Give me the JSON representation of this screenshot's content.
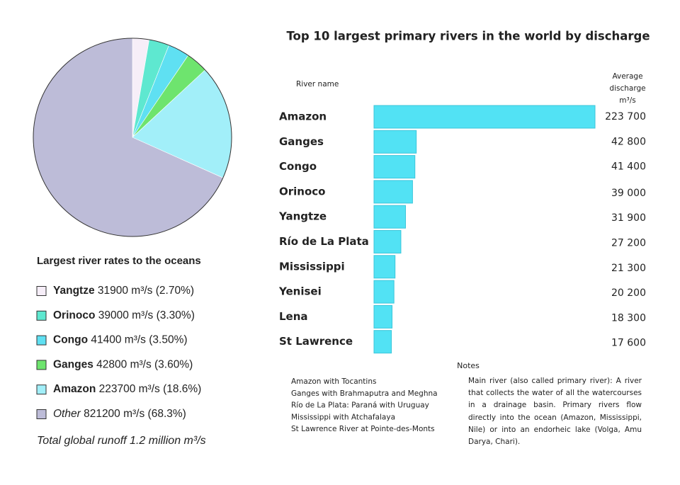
{
  "chart_data": [
    {
      "type": "pie",
      "title": "Largest river rates to the oceans",
      "categories": [
        "Yangtze",
        "Orinoco",
        "Congo",
        "Ganges",
        "Amazon",
        "Other"
      ],
      "values": [
        2.7,
        3.3,
        3.5,
        3.6,
        18.6,
        68.3
      ],
      "value_labels": [
        "31900 m³/s (2.70%)",
        "39000 m³/s (3.30%)",
        "41400 m³/s (3.50%)",
        "42800 m³/s (3.60%)",
        "223700 m³/s (18.6%)",
        "821200 m³/s (68.3%)"
      ],
      "colors": [
        "#f6eef8",
        "#5ee8d0",
        "#5fe0f2",
        "#6ee46e",
        "#a2eff9",
        "#bdbcd8"
      ],
      "note": "Total global runoff 1.2 million m³/s"
    },
    {
      "type": "bar",
      "title": "Top 10 largest primary rivers in the world by discharge",
      "category_header": "River name",
      "value_header": [
        "Average",
        "discharge",
        "m³/s"
      ],
      "categories": [
        "Amazon",
        "Ganges",
        "Congo",
        "Orinoco",
        "Yangtze",
        "Río de La Plata",
        "Mississippi",
        "Yenisei",
        "Lena",
        "St Lawrence"
      ],
      "values": [
        223700,
        42800,
        41400,
        39000,
        31900,
        27200,
        21300,
        20200,
        18300,
        17600
      ],
      "value_labels": [
        "223 700",
        "42 800",
        "41 400",
        "39 000",
        "31 900",
        "27 200",
        "21 300",
        "20 200",
        "18 300",
        "17 600"
      ],
      "color": "#52e2f4",
      "notes": {
        "title": "Notes",
        "items": [
          "Amazon with Tocantins",
          "Ganges with Brahmaputra and Meghna",
          "Río de La Plata: Paraná with Uruguay",
          "Mississippi with Atchafalaya",
          "St Lawrence River at Pointe-des-Monts"
        ],
        "text": "Main river (also called primary river): A river that collects the water of all the watercourses in a drainage basin. Primary rivers flow directly into the ocean (Amazon, Mississippi, Nile) or into an endorheic lake (Volga, Amu Darya, Chari)."
      }
    }
  ]
}
